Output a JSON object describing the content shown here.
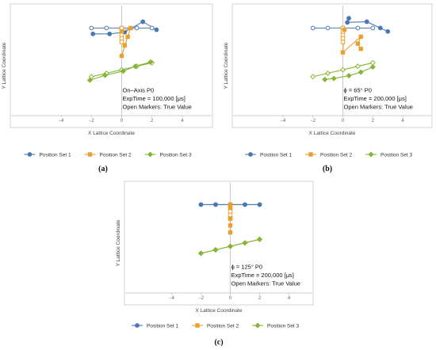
{
  "colors": {
    "set1": "#4a78b5",
    "set2": "#e8a030",
    "set3": "#86b534",
    "frame": "#c8c8c8",
    "axis": "#bdbdbd"
  },
  "chart_data": [
    {
      "type": "line",
      "caption": "(a)",
      "xlabel": "X Lattice Coordinate",
      "ylabel": "Y Lattice Coordinate",
      "xlim": [
        -5,
        5
      ],
      "ylim": [
        0,
        33
      ],
      "xticks": [
        "-4",
        "-2",
        "0",
        "2",
        "4"
      ],
      "annotation": [
        "On–Axis P0",
        "ExpTime = 100,000 [μs]",
        "Open Markers: True Value"
      ],
      "legend": [
        "Position Set 1",
        "Position Set 2",
        "Position Set 3"
      ],
      "legend_placement": "bottom",
      "series": [
        {
          "name": "Position Set 1",
          "marker": "circle",
          "true": [
            [
              -2,
              27
            ],
            [
              -1,
              27
            ],
            [
              0,
              27
            ],
            [
              1,
              27
            ],
            [
              2,
              27
            ]
          ],
          "measured": [
            [
              -1.9,
              25.3
            ],
            [
              -0.8,
              25.3
            ],
            [
              0.2,
              25.8
            ],
            [
              1.4,
              28.8
            ],
            [
              2.3,
              26.5
            ]
          ]
        },
        {
          "name": "Position Set 2",
          "marker": "square",
          "true": [
            [
              0,
              27
            ],
            [
              0,
              26
            ],
            [
              0,
              25
            ],
            [
              0,
              24
            ],
            [
              0,
              23
            ]
          ],
          "measured": [
            [
              0,
              26
            ],
            [
              0.6,
              27
            ],
            [
              0.2,
              22
            ],
            [
              0,
              19
            ],
            [
              0.4,
              24.5
            ]
          ]
        },
        {
          "name": "Position Set 3",
          "marker": "diamond",
          "true": [
            [
              -2,
              13
            ],
            [
              -1,
              14
            ],
            [
              0,
              15
            ],
            [
              1,
              16
            ],
            [
              2,
              17
            ]
          ],
          "measured": [
            [
              -2.1,
              12
            ],
            [
              -1.1,
              13.4
            ],
            [
              0.1,
              14.6
            ],
            [
              0.9,
              16
            ],
            [
              1.9,
              17.2
            ]
          ]
        }
      ]
    },
    {
      "type": "line",
      "caption": "(b)",
      "xlabel": "X Lattice Coordinate",
      "ylabel": "Y Lattice Coordinate",
      "xlim": [
        -5,
        5
      ],
      "ylim": [
        0,
        33
      ],
      "xticks": [
        "-4",
        "-2",
        "0",
        "2",
        "4"
      ],
      "annotation": [
        "ϕ = 65° P0",
        "ExpTime = 200,000 [μs]",
        "Open Markers: True Value"
      ],
      "legend": [
        "Position Set 1",
        "Position Set 2",
        "Position Set 3"
      ],
      "legend_placement": "bottom",
      "series": [
        {
          "name": "Position Set 1",
          "marker": "circle",
          "true": [
            [
              -2,
              27
            ],
            [
              -1,
              27
            ],
            [
              0,
              27
            ],
            [
              1,
              27
            ],
            [
              2,
              27
            ]
          ],
          "measured": [
            [
              0.4,
              29.8
            ],
            [
              0.3,
              28.6
            ],
            [
              1.6,
              28.8
            ],
            [
              2.5,
              27
            ],
            [
              3,
              26
            ]
          ]
        },
        {
          "name": "Position Set 2",
          "marker": "square",
          "true": [
            [
              0,
              27
            ],
            [
              0,
              26
            ],
            [
              0,
              25
            ],
            [
              0,
              24
            ],
            [
              0,
              23
            ]
          ],
          "measured": [
            [
              0.1,
              26.5
            ],
            [
              0,
              20
            ],
            [
              1.2,
              24.5
            ],
            [
              1,
              22.5
            ],
            [
              1.2,
              21
            ]
          ]
        },
        {
          "name": "Position Set 3",
          "marker": "diamond",
          "true": [
            [
              -2,
              13
            ],
            [
              -1,
              14
            ],
            [
              0,
              15
            ],
            [
              1,
              16
            ],
            [
              2,
              17
            ]
          ],
          "measured": [
            [
              -1.2,
              12.2
            ],
            [
              -0.6,
              12.5
            ],
            [
              0.4,
              13.3
            ],
            [
              1.2,
              14.3
            ],
            [
              2,
              15.8
            ]
          ]
        }
      ]
    },
    {
      "type": "line",
      "caption": "(c)",
      "xlabel": "X Lattice Coordinate",
      "ylabel": "Y Lattice Coordinate",
      "xlim": [
        -5,
        5
      ],
      "ylim": [
        0,
        33
      ],
      "xticks": [
        "-4",
        "-2",
        "0",
        "2",
        "4"
      ],
      "annotation": [
        "ϕ = 125° P0",
        "ExpTime = 200,000 [μs]",
        "Open Markers: True Value"
      ],
      "legend": [
        "Position Set 1",
        "Position Set 2",
        "Position Set 3"
      ],
      "legend_placement": "bottom",
      "series": [
        {
          "name": "Position Set 1",
          "marker": "circle",
          "true": [
            [
              -2,
              27
            ],
            [
              -1,
              27
            ],
            [
              0,
              27
            ],
            [
              1,
              27
            ],
            [
              2,
              27
            ]
          ],
          "measured": [
            [
              -2,
              27
            ],
            [
              -1,
              27
            ],
            [
              0,
              27
            ],
            [
              1,
              27
            ],
            [
              2,
              27
            ]
          ]
        },
        {
          "name": "Position Set 2",
          "marker": "square",
          "true": [
            [
              0,
              27
            ],
            [
              0,
              26
            ],
            [
              0,
              25
            ],
            [
              0,
              24
            ],
            [
              0,
              23
            ]
          ],
          "measured": [
            [
              0,
              27
            ],
            [
              0,
              26
            ],
            [
              0,
              23
            ],
            [
              0,
              21
            ],
            [
              0,
              19
            ]
          ]
        },
        {
          "name": "Position Set 3",
          "marker": "diamond",
          "true": [
            [
              -2,
              13
            ],
            [
              -1,
              14
            ],
            [
              0,
              15
            ],
            [
              1,
              16
            ],
            [
              2,
              17
            ]
          ],
          "measured": [
            [
              -2,
              13
            ],
            [
              -1,
              14
            ],
            [
              0,
              15
            ],
            [
              1,
              16
            ],
            [
              2,
              17
            ]
          ]
        }
      ]
    }
  ]
}
